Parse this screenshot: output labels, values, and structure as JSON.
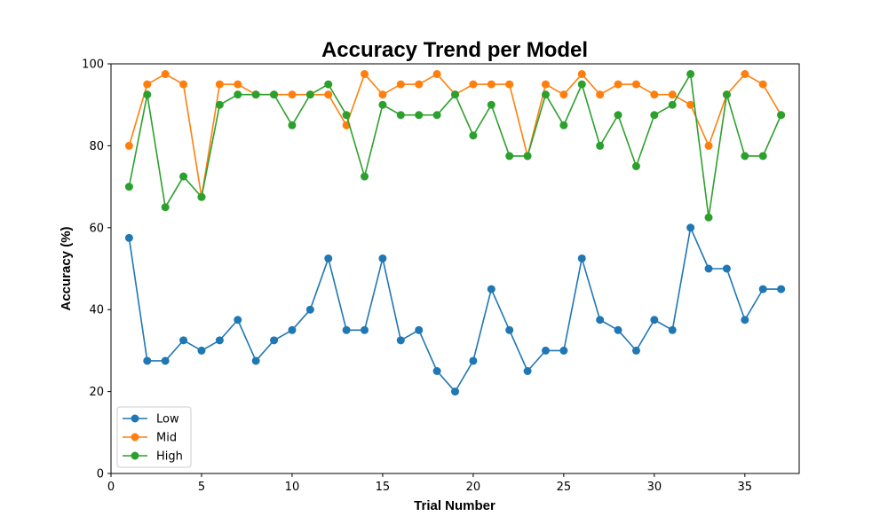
{
  "chart_data": {
    "type": "line",
    "title": "Accuracy Trend per Model",
    "xlabel": "Trial Number",
    "ylabel": "Accuracy (%)",
    "xlim": [
      0,
      38
    ],
    "ylim": [
      0,
      100
    ],
    "xticks": [
      0,
      5,
      10,
      15,
      20,
      25,
      30,
      35
    ],
    "yticks": [
      0,
      20,
      40,
      60,
      80,
      100
    ],
    "grid": false,
    "legend_position": "lower-left",
    "x": [
      1,
      2,
      3,
      4,
      5,
      6,
      7,
      8,
      9,
      10,
      11,
      12,
      13,
      14,
      15,
      16,
      17,
      18,
      19,
      20,
      21,
      22,
      23,
      24,
      25,
      26,
      27,
      28,
      29,
      30,
      31,
      32,
      33,
      34,
      35,
      36,
      37
    ],
    "series": [
      {
        "name": "Low",
        "color": "#1f77b4",
        "values": [
          57.5,
          27.5,
          27.5,
          32.5,
          30,
          32.5,
          37.5,
          27.5,
          32.5,
          35,
          40,
          52.5,
          35,
          35,
          52.5,
          32.5,
          35,
          25,
          20,
          27.5,
          45,
          35,
          25,
          30,
          30,
          52.5,
          37.5,
          35,
          30,
          37.5,
          35,
          60,
          50,
          50,
          37.5,
          45,
          45
        ]
      },
      {
        "name": "Mid",
        "color": "#ff7f0e",
        "values": [
          80,
          95,
          97.5,
          95,
          67.5,
          95,
          95,
          92.5,
          92.5,
          92.5,
          92.5,
          92.5,
          85,
          97.5,
          92.5,
          95,
          95,
          97.5,
          92.5,
          95,
          95,
          95,
          77.5,
          95,
          92.5,
          97.5,
          92.5,
          95,
          95,
          92.5,
          92.5,
          90,
          80,
          92.5,
          97.5,
          95,
          87.5
        ]
      },
      {
        "name": "High",
        "color": "#2ca02c",
        "values": [
          70,
          92.5,
          65,
          72.5,
          67.5,
          90,
          92.5,
          92.5,
          92.5,
          85,
          92.5,
          95,
          87.5,
          72.5,
          90,
          87.5,
          87.5,
          87.5,
          92.5,
          82.5,
          90,
          77.5,
          77.5,
          92.5,
          85,
          95,
          80,
          87.5,
          75,
          87.5,
          90,
          97.5,
          62.5,
          92.5,
          77.5,
          77.5,
          87.5
        ]
      }
    ]
  }
}
